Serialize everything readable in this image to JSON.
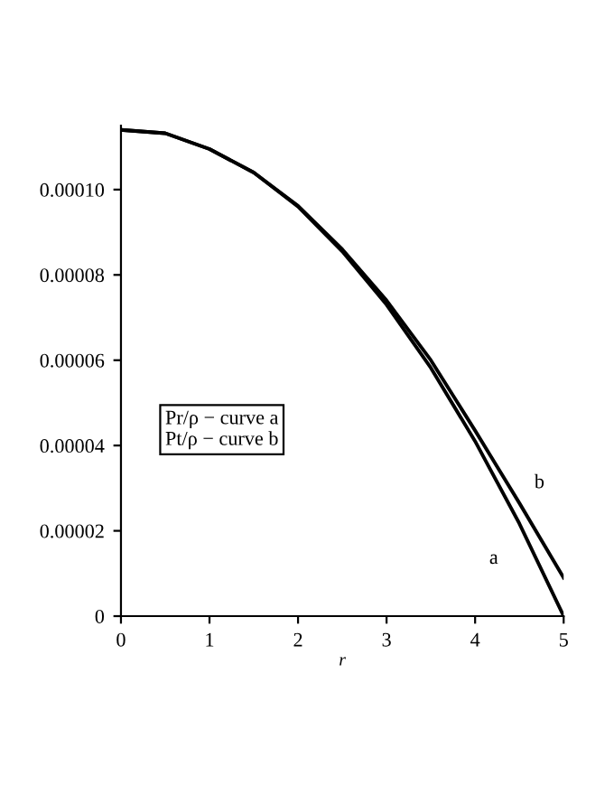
{
  "chart_data": {
    "type": "line",
    "xlabel": "r",
    "x": [
      0,
      0.5,
      1,
      1.5,
      2,
      2.5,
      3,
      3.5,
      4,
      4.5,
      5
    ],
    "series": [
      {
        "name": "a",
        "color": "#000000",
        "values": [
          0.000114,
          0.0001132,
          0.0001095,
          0.000104,
          9.6e-05,
          8.55e-05,
          7.3e-05,
          5.82e-05,
          4.1e-05,
          2.17e-05,
          0
        ]
      },
      {
        "name": "b",
        "color": "#000000",
        "values": [
          0.000114,
          0.0001132,
          0.0001095,
          0.000104,
          9.62e-05,
          8.6e-05,
          7.4e-05,
          6e-05,
          4.35e-05,
          2.65e-05,
          9e-06
        ]
      }
    ],
    "xlim": [
      0,
      5
    ],
    "xticks": [
      0,
      1,
      2,
      3,
      4,
      5
    ],
    "ylim": [
      0,
      0.000115
    ],
    "yticks": [
      0,
      {
        "value": 2e-05,
        "label": "0.00002"
      },
      {
        "value": 4e-05,
        "label": "0.00004"
      },
      {
        "value": 6e-05,
        "label": "0.00006"
      },
      {
        "value": 8e-05,
        "label": "0.00008"
      },
      {
        "value": 0.0001,
        "label": "0.00010"
      }
    ],
    "annotations": [
      {
        "text": "Pr/ρ − curve a\nPt/ρ − curve b"
      }
    ],
    "grid": false,
    "legend": false,
    "marker": "none",
    "line_style": "solid"
  }
}
